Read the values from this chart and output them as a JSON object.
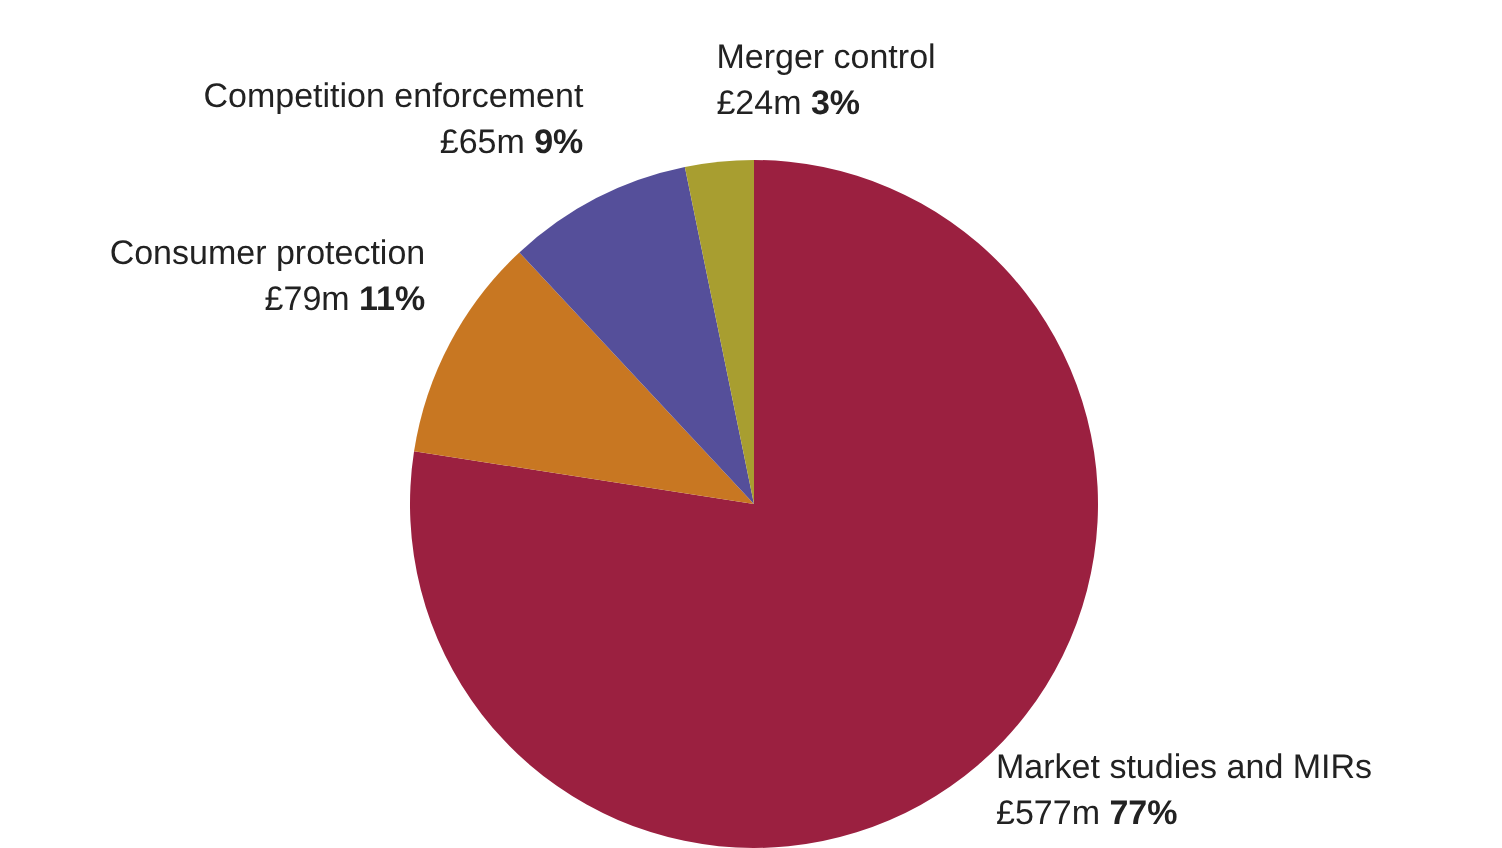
{
  "chart_data": {
    "type": "pie",
    "categories": [
      "Market studies and MIRs",
      "Consumer protection",
      "Competition enforcement",
      "Merger control"
    ],
    "values": [
      577,
      79,
      65,
      24
    ],
    "value_labels": [
      "£577m",
      "£79m",
      "£65m",
      "£24m"
    ],
    "annotations": [
      "77%",
      "11%",
      "9%",
      "3%"
    ],
    "colors": [
      "#9b2040",
      "#c87722",
      "#554f9a",
      "#a89e30"
    ]
  }
}
